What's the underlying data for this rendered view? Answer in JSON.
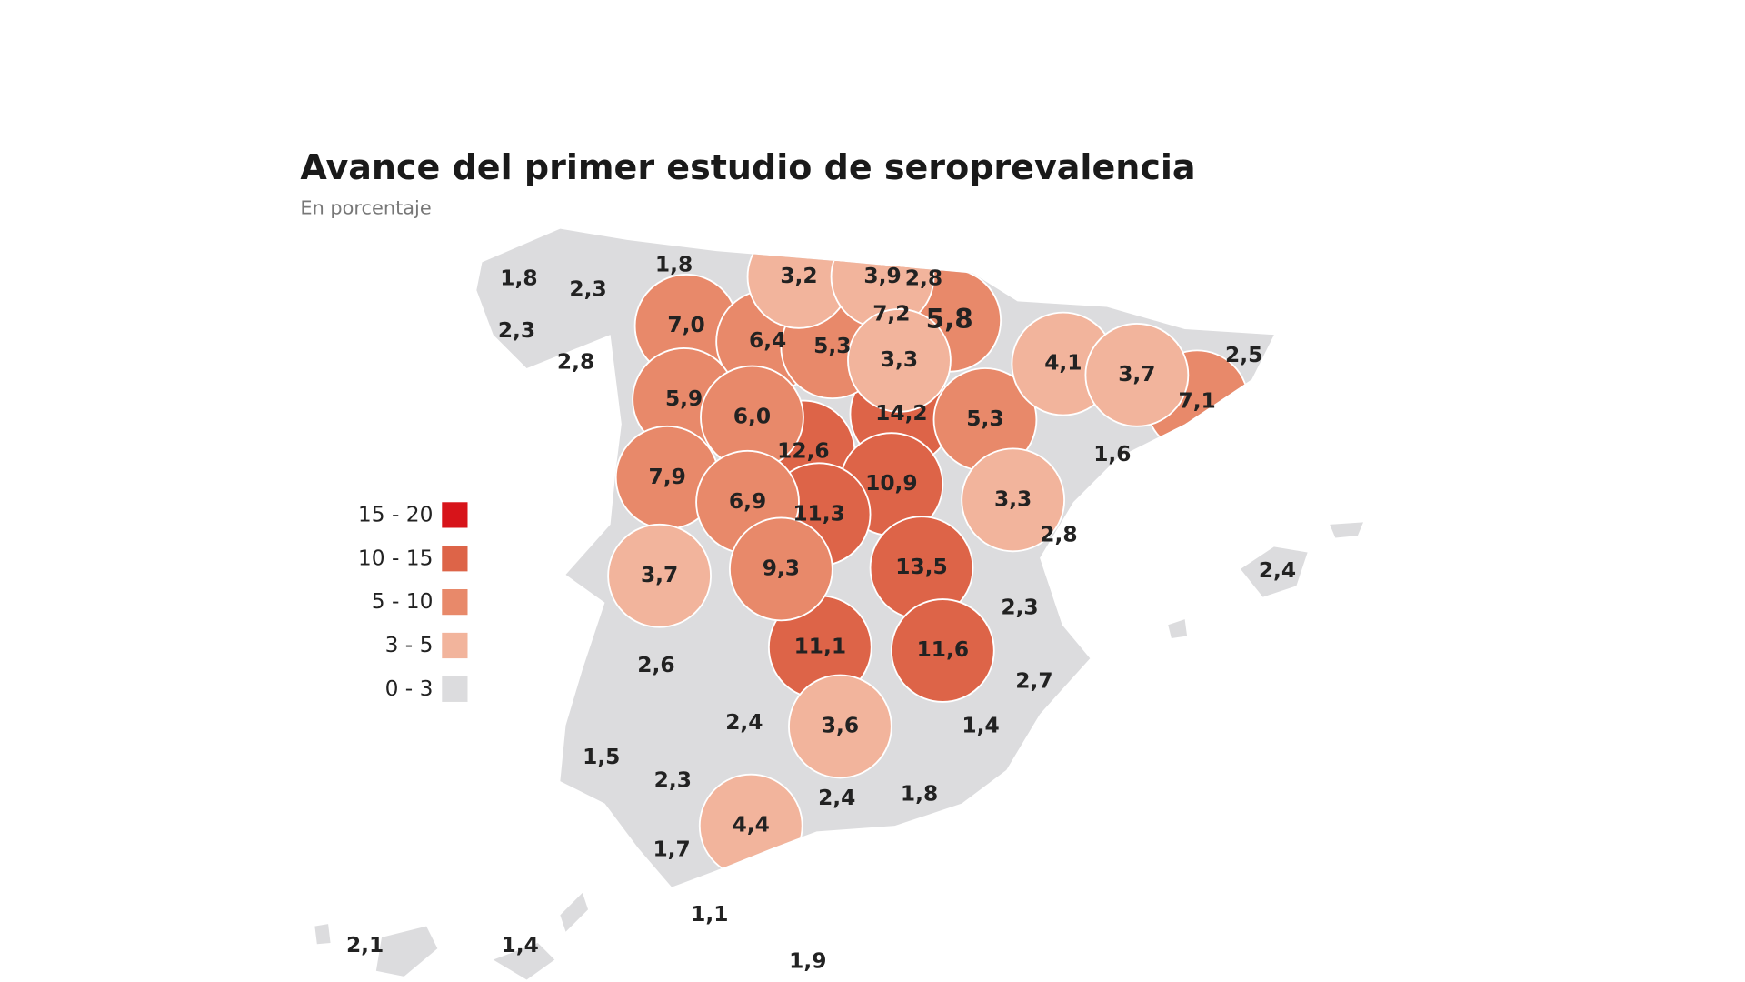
{
  "header": {
    "title": "Avance del primer estudio de seroprevalencia",
    "subtitle": "En porcentaje"
  },
  "legend": [
    {
      "label": "15 - 20",
      "color": "#d7141a"
    },
    {
      "label": "10 - 15",
      "color": "#dd6448"
    },
    {
      "label": "5 - 10",
      "color": "#e8896a"
    },
    {
      "label": "3 - 5",
      "color": "#f2b49c"
    },
    {
      "label": "0 - 3",
      "color": "#dcdcde"
    }
  ],
  "regions": [
    {
      "label": "1,8",
      "color": "#dcdcde"
    },
    {
      "label": "2,3",
      "color": "#dcdcde"
    },
    {
      "label": "1,8",
      "color": "#dcdcde"
    },
    {
      "label": "3,2",
      "color": "#f2b49c"
    },
    {
      "label": "3,9",
      "color": "#f2b49c"
    },
    {
      "label": "2,8",
      "color": "#dcdcde"
    },
    {
      "label": "7,2",
      "color": "#e8896a"
    },
    {
      "label": "5,8",
      "color": "#e8896a"
    },
    {
      "label": "2,3",
      "color": "#dcdcde"
    },
    {
      "label": "2,8",
      "color": "#dcdcde"
    },
    {
      "label": "7,0",
      "color": "#e8896a"
    },
    {
      "label": "6,4",
      "color": "#e8896a"
    },
    {
      "label": "5,3",
      "color": "#e8896a"
    },
    {
      "label": "3,3",
      "color": "#f2b49c"
    },
    {
      "label": "4,1",
      "color": "#f2b49c"
    },
    {
      "label": "3,7",
      "color": "#f2b49c"
    },
    {
      "label": "2,5",
      "color": "#dcdcde"
    },
    {
      "label": "7,1",
      "color": "#e8896a"
    },
    {
      "label": "5,9",
      "color": "#e8896a"
    },
    {
      "label": "6,0",
      "color": "#e8896a"
    },
    {
      "label": "14,2",
      "color": "#dd6448"
    },
    {
      "label": "5,3",
      "color": "#e8896a"
    },
    {
      "label": "1,6",
      "color": "#dcdcde"
    },
    {
      "label": "12,6",
      "color": "#dd6448"
    },
    {
      "label": "10,9",
      "color": "#dd6448"
    },
    {
      "label": "7,9",
      "color": "#e8896a"
    },
    {
      "label": "6,9",
      "color": "#e8896a"
    },
    {
      "label": "11,3",
      "color": "#dd6448"
    },
    {
      "label": "3,3",
      "color": "#f2b49c"
    },
    {
      "label": "2,8",
      "color": "#dcdcde"
    },
    {
      "label": "9,3",
      "color": "#e8896a"
    },
    {
      "label": "13,5",
      "color": "#dd6448"
    },
    {
      "label": "3,7",
      "color": "#f2b49c"
    },
    {
      "label": "2,4",
      "color": "#dcdcde"
    },
    {
      "label": "2,3",
      "color": "#dcdcde"
    },
    {
      "label": "2,6",
      "color": "#dcdcde"
    },
    {
      "label": "11,1",
      "color": "#dd6448"
    },
    {
      "label": "11,6",
      "color": "#dd6448"
    },
    {
      "label": "2,7",
      "color": "#dcdcde"
    },
    {
      "label": "2,4",
      "color": "#dcdcde"
    },
    {
      "label": "3,6",
      "color": "#f2b49c"
    },
    {
      "label": "1,4",
      "color": "#dcdcde"
    },
    {
      "label": "1,5",
      "color": "#dcdcde"
    },
    {
      "label": "2,3",
      "color": "#dcdcde"
    },
    {
      "label": "2,4",
      "color": "#dcdcde"
    },
    {
      "label": "1,8",
      "color": "#dcdcde"
    },
    {
      "label": "4,4",
      "color": "#f2b49c"
    },
    {
      "label": "1,7",
      "color": "#dcdcde"
    },
    {
      "label": "1,1",
      "color": "#dcdcde"
    },
    {
      "label": "2,1",
      "color": "#dcdcde"
    },
    {
      "label": "1,4",
      "color": "#dcdcde"
    },
    {
      "label": "1,9",
      "color": "#dcdcde"
    }
  ]
}
